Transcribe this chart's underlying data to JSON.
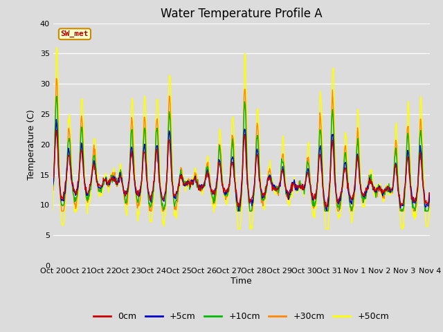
{
  "title": "Water Temperature Profile A",
  "xlabel": "Time",
  "ylabel": "Temperature (C)",
  "ylim": [
    0,
    40
  ],
  "yticks": [
    0,
    5,
    10,
    15,
    20,
    25,
    30,
    35,
    40
  ],
  "colors": {
    "0cm": "#cc0000",
    "+5cm": "#0000cc",
    "+10cm": "#00bb00",
    "+30cm": "#ff8800",
    "+50cm": "#ffff00"
  },
  "legend_labels": [
    "0cm",
    "+5cm",
    "+10cm",
    "+30cm",
    "+50cm"
  ],
  "annotation_text": "SW_met",
  "annotation_box_facecolor": "#ffffcc",
  "annotation_text_color": "#aa0000",
  "annotation_edge_color": "#cc8800",
  "background_color": "#dcdcdc",
  "title_fontsize": 12,
  "axis_label_fontsize": 9,
  "tick_label_fontsize": 8,
  "xtick_labels": [
    "Oct 20",
    "Oct 21",
    "Oct 22",
    "Oct 23",
    "Oct 24",
    "Oct 25",
    "Oct 26",
    "Oct 27",
    "Oct 28",
    "Oct 29",
    "Oct 30",
    "Oct 31",
    "Nov 1",
    "Nov 2",
    "Nov 3",
    "Nov 4"
  ]
}
